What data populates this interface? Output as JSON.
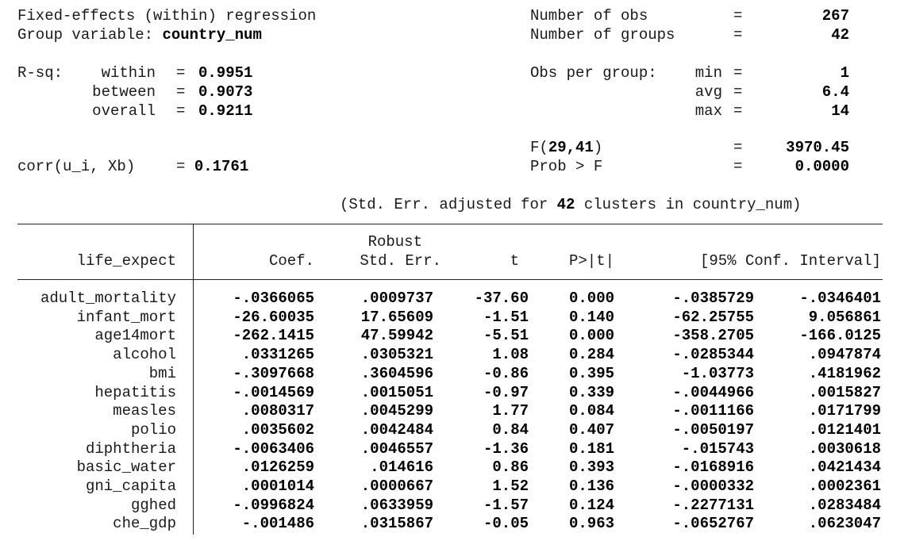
{
  "header": {
    "title": "Fixed-effects (within) regression",
    "group_var_label": "Group variable:",
    "group_var": "country_num",
    "nobs_label": "Number of obs",
    "nobs": "267",
    "ngroups_label": "Number of groups",
    "ngroups": "42",
    "eq": "=",
    "rsq_label": "R-sq:",
    "rsq_within_label": "within",
    "rsq_within": "0.9951",
    "rsq_between_label": "between",
    "rsq_between": "0.9073",
    "rsq_overall_label": "overall",
    "rsq_overall": "0.9211",
    "opg_label": "Obs per group:",
    "opg_min_label": "min",
    "opg_min": "1",
    "opg_avg_label": "avg",
    "opg_avg": "6.4",
    "opg_max_label": "max",
    "opg_max": "14",
    "f_label_prefix": "F(",
    "f_df": "29,41",
    "f_label_suffix": ")",
    "f_value": "3970.45",
    "probf_label": "Prob > F",
    "probf": "0.0000",
    "corr_label": "corr(u_i, Xb)",
    "corr_eq": "= ",
    "corr": "0.1761",
    "se_note_pre": "(Std. Err. adjusted for ",
    "se_note_n": "42",
    "se_note_post": " clusters in country_num)"
  },
  "table": {
    "depvar": "life_expect",
    "col_coef": "Coef.",
    "col_robust": "Robust",
    "col_se": "Std. Err.",
    "col_t": "t",
    "col_p": "P>|t|",
    "col_ci": "[95% Conf. Interval]",
    "rows": [
      {
        "var": "adult_mortality",
        "coef": "-.0366065",
        "se": ".0009737",
        "t": "-37.60",
        "p": "0.000",
        "lo": "-.0385729",
        "hi": "-.0346401"
      },
      {
        "var": "infant_mort",
        "coef": "-26.60035",
        "se": "17.65609",
        "t": "-1.51",
        "p": "0.140",
        "lo": "-62.25755",
        "hi": "9.056861"
      },
      {
        "var": "age14mort",
        "coef": "-262.1415",
        "se": "47.59942",
        "t": "-5.51",
        "p": "0.000",
        "lo": "-358.2705",
        "hi": "-166.0125"
      },
      {
        "var": "alcohol",
        "coef": ".0331265",
        "se": ".0305321",
        "t": "1.08",
        "p": "0.284",
        "lo": "-.0285344",
        "hi": ".0947874"
      },
      {
        "var": "bmi",
        "coef": "-.3097668",
        "se": ".3604596",
        "t": "-0.86",
        "p": "0.395",
        "lo": "-1.03773",
        "hi": ".4181962"
      },
      {
        "var": "hepatitis",
        "coef": "-.0014569",
        "se": ".0015051",
        "t": "-0.97",
        "p": "0.339",
        "lo": "-.0044966",
        "hi": ".0015827"
      },
      {
        "var": "measles",
        "coef": ".0080317",
        "se": ".0045299",
        "t": "1.77",
        "p": "0.084",
        "lo": "-.0011166",
        "hi": ".0171799"
      },
      {
        "var": "polio",
        "coef": ".0035602",
        "se": ".0042484",
        "t": "0.84",
        "p": "0.407",
        "lo": "-.0050197",
        "hi": ".0121401"
      },
      {
        "var": "diphtheria",
        "coef": "-.0063406",
        "se": ".0046557",
        "t": "-1.36",
        "p": "0.181",
        "lo": "-.015743",
        "hi": ".0030618"
      },
      {
        "var": "basic_water",
        "coef": ".0126259",
        "se": ".014616",
        "t": "0.86",
        "p": "0.393",
        "lo": "-.0168916",
        "hi": ".0421434"
      },
      {
        "var": "gni_capita",
        "coef": ".0001014",
        "se": ".0000667",
        "t": "1.52",
        "p": "0.136",
        "lo": "-.0000332",
        "hi": ".0002361"
      },
      {
        "var": "gghed",
        "coef": "-.0996824",
        "se": ".0633959",
        "t": "-1.57",
        "p": "0.124",
        "lo": "-.2277131",
        "hi": ".0283484"
      },
      {
        "var": "che_gdp",
        "coef": "-.001486",
        "se": ".0315867",
        "t": "-0.05",
        "p": "0.963",
        "lo": "-.0652767",
        "hi": ".0623047"
      }
    ]
  }
}
